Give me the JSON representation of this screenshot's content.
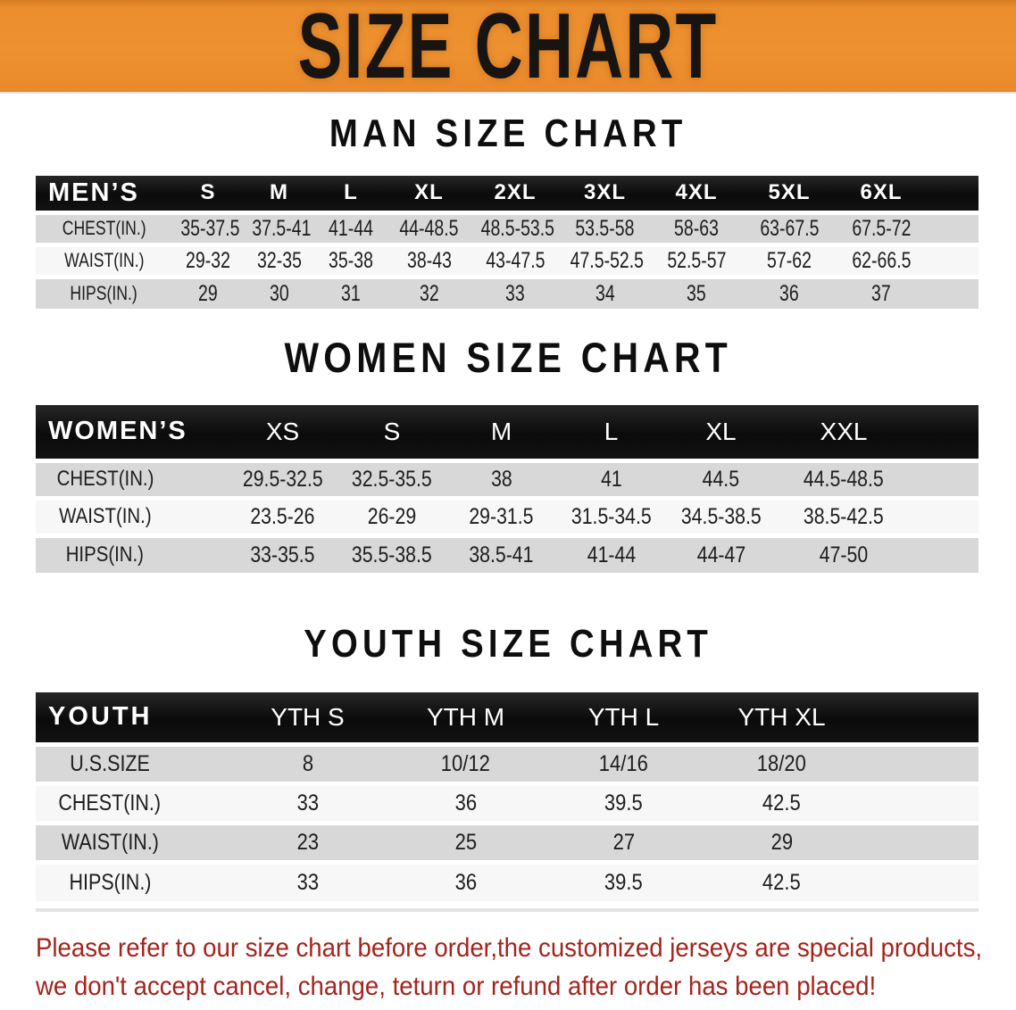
{
  "banner": {
    "title": "SIZE CHART",
    "background_color": "#EC8F2E",
    "text_color": "#181411"
  },
  "tables": {
    "men": {
      "heading": "MAN SIZE CHART",
      "corner_label": "MEN’S",
      "columns": [
        "S",
        "M",
        "L",
        "XL",
        "2XL",
        "3XL",
        "4XL",
        "5XL",
        "6XL"
      ],
      "rows": [
        {
          "label": "CHEST(IN.)",
          "values": [
            "35-37.5",
            "37.5-41",
            "41-44",
            "44-48.5",
            "48.5-53.5",
            "53.5-58",
            "58-63",
            "63-67.5",
            "67.5-72"
          ]
        },
        {
          "label": "WAIST(IN.)",
          "values": [
            "29-32",
            "32-35",
            "35-38",
            "38-43",
            "43-47.5",
            "47.5-52.5",
            "52.5-57",
            "57-62",
            "62-66.5"
          ]
        },
        {
          "label": "HIPS(IN.)",
          "values": [
            "29",
            "30",
            "31",
            "32",
            "33",
            "34",
            "35",
            "36",
            "37"
          ]
        }
      ]
    },
    "women": {
      "heading": "WOMEN SIZE CHART",
      "corner_label": "WOMEN’S",
      "columns": [
        "XS",
        "S",
        "M",
        "L",
        "XL",
        "XXL"
      ],
      "rows": [
        {
          "label": "CHEST(IN.)",
          "values": [
            "29.5-32.5",
            "32.5-35.5",
            "38",
            "41",
            "44.5",
            "44.5-48.5"
          ]
        },
        {
          "label": "WAIST(IN.)",
          "values": [
            "23.5-26",
            "26-29",
            "29-31.5",
            "31.5-34.5",
            "34.5-38.5",
            "38.5-42.5"
          ]
        },
        {
          "label": "HIPS(IN.)",
          "values": [
            "33-35.5",
            "35.5-38.5",
            "38.5-41",
            "41-44",
            "44-47",
            "47-50"
          ]
        }
      ]
    },
    "youth": {
      "heading": "YOUTH SIZE CHART",
      "corner_label": "YOUTH",
      "columns": [
        "YTH S",
        "YTH M",
        "YTH L",
        "YTH XL"
      ],
      "rows": [
        {
          "label": "U.S.SIZE",
          "values": [
            "8",
            "10/12",
            "14/16",
            "18/20"
          ]
        },
        {
          "label": "CHEST(IN.)",
          "values": [
            "33",
            "36",
            "39.5",
            "42.5"
          ]
        },
        {
          "label": "WAIST(IN.)",
          "values": [
            "23",
            "25",
            "27",
            "29"
          ]
        },
        {
          "label": "HIPS(IN.)",
          "values": [
            "33",
            "36",
            "39.5",
            "42.5"
          ]
        }
      ]
    }
  },
  "notice": {
    "color": "#a3241c",
    "lines": [
      "Please refer to our size chart before order,the customized jerseys are special products,",
      "we don't accept cancel, change, teturn or refund after order has been placed!"
    ]
  },
  "colors": {
    "header_bar": "#111111",
    "row_shaded": "#d8d8d8",
    "row_light": "#f7f7f7"
  }
}
